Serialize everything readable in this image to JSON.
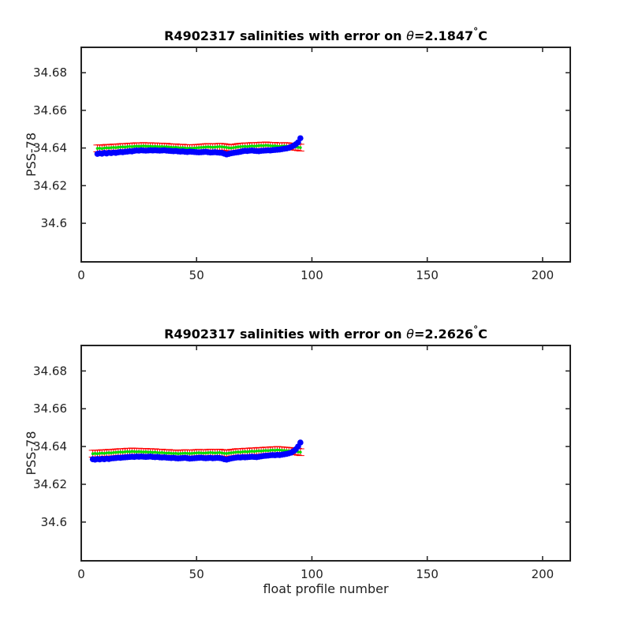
{
  "chart_data": [
    {
      "type": "line",
      "title_prefix": "R4902317 salinities with error on ",
      "title_theta": "θ",
      "title_value": "=2.1847",
      "title_deg": "°",
      "title_unit": "C",
      "xlabel": "",
      "ylabel": "PSS-78",
      "xlim": [
        0,
        212
      ],
      "ylim": [
        34.5795,
        34.6935
      ],
      "xticks": [
        0,
        50,
        100,
        150,
        200
      ],
      "yticks": [
        34.6,
        34.62,
        34.64,
        34.66,
        34.68
      ],
      "ytick_labels": [
        "34.6",
        "34.62",
        "34.64",
        "34.66",
        "34.68"
      ],
      "grid": false,
      "colors": {
        "measured": "#0000ff",
        "mapped": "#00dd00",
        "error": "#ff0000"
      },
      "series": [
        {
          "x": [
            7,
            8,
            9,
            10,
            11,
            12,
            13,
            14,
            15,
            16,
            17,
            18,
            19,
            20,
            21,
            22,
            23,
            24,
            25,
            26,
            27,
            28,
            29,
            30,
            31,
            32,
            33,
            34,
            35,
            36,
            37,
            38,
            39,
            40,
            41,
            42,
            43,
            44,
            45,
            46,
            47,
            48,
            49,
            50,
            51,
            52,
            53,
            54,
            55,
            56,
            57,
            58,
            59,
            60,
            61,
            62,
            63,
            64,
            65,
            66,
            67,
            68,
            69,
            70,
            71,
            72,
            73,
            74,
            75,
            76,
            77,
            78,
            79,
            80,
            81,
            82,
            83,
            84,
            85,
            86,
            87,
            88,
            89,
            90,
            91,
            92,
            93,
            94,
            95
          ],
          "values": [
            34.6369,
            34.6372,
            34.637,
            34.6374,
            34.6371,
            34.6375,
            34.6373,
            34.6376,
            34.6374,
            34.6377,
            34.6379,
            34.6378,
            34.638,
            34.6381,
            34.6383,
            34.6382,
            34.6385,
            34.6387,
            34.6386,
            34.6388,
            34.6387,
            34.6386,
            34.6387,
            34.6388,
            34.6387,
            34.6388,
            34.6387,
            34.6386,
            34.6387,
            34.6388,
            34.6386,
            34.6385,
            34.6384,
            34.6383,
            34.6384,
            34.6382,
            34.6381,
            34.6382,
            34.638,
            34.6379,
            34.6381,
            34.638,
            34.6379,
            34.6378,
            34.6377,
            34.6378,
            34.6379,
            34.638,
            34.6378,
            34.6376,
            34.6377,
            34.6378,
            34.6376,
            34.6375,
            34.6374,
            34.637,
            34.6366,
            34.6369,
            34.6372,
            34.6374,
            34.6376,
            34.6378,
            34.638,
            34.6383,
            34.6385,
            34.6384,
            34.6386,
            34.6387,
            34.6385,
            34.6384,
            34.6383,
            34.6385,
            34.6386,
            34.6387,
            34.6388,
            34.6387,
            34.6389,
            34.639,
            34.6391,
            34.6392,
            34.6394,
            34.6396,
            34.6398,
            34.6401,
            34.6406,
            34.6412,
            34.642,
            34.643,
            34.6452
          ],
          "mapped": [
            34.6398,
            34.6399,
            34.6397,
            34.64,
            34.6401,
            34.64,
            34.6402,
            34.6403,
            34.6402,
            34.6404,
            34.6405,
            34.6406,
            34.6405,
            34.6407,
            34.6408,
            34.6407,
            34.6409,
            34.641,
            34.6409,
            34.641,
            34.6411,
            34.641,
            34.6409,
            34.641,
            34.6408,
            34.6409,
            34.6408,
            34.6407,
            34.6408,
            34.6406,
            34.6407,
            34.6405,
            34.6404,
            34.6403,
            34.6404,
            34.6402,
            34.6401,
            34.6402,
            34.64,
            34.6399,
            34.64,
            34.6399,
            34.64,
            34.6401,
            34.6402,
            34.6403,
            34.6404,
            34.6405,
            34.6406,
            34.6405,
            34.6404,
            34.6405,
            34.6406,
            34.6407,
            34.6406,
            34.6405,
            34.6403,
            34.6401,
            34.64,
            34.6402,
            34.6404,
            34.6406,
            34.6407,
            34.6408,
            34.6409,
            34.6408,
            34.641,
            34.6411,
            34.641,
            34.6411,
            34.6412,
            34.6413,
            34.6412,
            34.6414,
            34.6413,
            34.6412,
            34.6411,
            34.6412,
            34.641,
            34.6409,
            34.641,
            34.6411,
            34.641,
            34.6409,
            34.6408,
            34.6407,
            34.6406,
            34.6404,
            34.6402
          ],
          "error": 0.0018
        }
      ]
    },
    {
      "type": "line",
      "title_prefix": "R4902317 salinities with error on ",
      "title_theta": "θ",
      "title_value": "=2.2626",
      "title_deg": "°",
      "title_unit": "C",
      "xlabel": "float profile number",
      "ylabel": "PSS-78",
      "xlim": [
        0,
        212
      ],
      "ylim": [
        34.5795,
        34.6935
      ],
      "xticks": [
        0,
        50,
        100,
        150,
        200
      ],
      "yticks": [
        34.6,
        34.62,
        34.64,
        34.66,
        34.68
      ],
      "ytick_labels": [
        "34.6",
        "34.62",
        "34.64",
        "34.66",
        "34.68"
      ],
      "grid": false,
      "colors": {
        "measured": "#0000ff",
        "mapped": "#00dd00",
        "error": "#ff0000"
      },
      "series": [
        {
          "x": [
            5,
            6,
            7,
            8,
            9,
            10,
            11,
            12,
            13,
            14,
            15,
            16,
            17,
            18,
            19,
            20,
            21,
            22,
            23,
            24,
            25,
            26,
            27,
            28,
            29,
            30,
            31,
            32,
            33,
            34,
            35,
            36,
            37,
            38,
            39,
            40,
            41,
            42,
            43,
            44,
            45,
            46,
            47,
            48,
            49,
            50,
            51,
            52,
            53,
            54,
            55,
            56,
            57,
            58,
            59,
            60,
            61,
            62,
            63,
            64,
            65,
            66,
            67,
            68,
            69,
            70,
            71,
            72,
            73,
            74,
            75,
            76,
            77,
            78,
            79,
            80,
            81,
            82,
            83,
            84,
            85,
            86,
            87,
            88,
            89,
            90,
            91,
            92,
            93,
            94,
            95
          ],
          "values": [
            34.6333,
            34.6331,
            34.6334,
            34.6332,
            34.6335,
            34.6333,
            34.6336,
            34.6334,
            34.6337,
            34.6338,
            34.6339,
            34.6341,
            34.634,
            34.6342,
            34.6343,
            34.6344,
            34.6345,
            34.6346,
            34.6345,
            34.6347,
            34.6346,
            34.6347,
            34.6346,
            34.6345,
            34.6346,
            34.6347,
            34.6345,
            34.6344,
            34.6345,
            34.6343,
            34.6342,
            34.6343,
            34.6341,
            34.634,
            34.6339,
            34.634,
            34.6338,
            34.6337,
            34.6338,
            34.6339,
            34.634,
            34.6338,
            34.6336,
            34.6337,
            34.6338,
            34.6339,
            34.634,
            34.6341,
            34.6339,
            34.6338,
            34.6339,
            34.634,
            34.6338,
            34.6339,
            34.634,
            34.6339,
            34.6337,
            34.6333,
            34.6331,
            34.6334,
            34.6337,
            34.6339,
            34.6341,
            34.6343,
            34.6342,
            34.6344,
            34.6343,
            34.6344,
            34.6345,
            34.6346,
            34.6345,
            34.6344,
            34.6346,
            34.6348,
            34.635,
            34.6351,
            34.6352,
            34.6354,
            34.6355,
            34.6354,
            34.6356,
            34.6355,
            34.6357,
            34.6359,
            34.6361,
            34.6364,
            34.6368,
            34.6375,
            34.6385,
            34.64,
            34.6421
          ],
          "mapped": [
            34.6362,
            34.6363,
            34.6362,
            34.6364,
            34.6365,
            34.6364,
            34.6366,
            34.6367,
            34.6366,
            34.6368,
            34.6369,
            34.637,
            34.6371,
            34.637,
            34.6372,
            34.6373,
            34.6372,
            34.6374,
            34.6373,
            34.6372,
            34.6373,
            34.6372,
            34.6371,
            34.6372,
            34.637,
            34.6371,
            34.6369,
            34.637,
            34.6368,
            34.6367,
            34.6368,
            34.6366,
            34.6365,
            34.6366,
            34.6364,
            34.6363,
            34.6364,
            34.6362,
            34.6363,
            34.6364,
            34.6365,
            34.6364,
            34.6363,
            34.6364,
            34.6365,
            34.6366,
            34.6367,
            34.6366,
            34.6365,
            34.6366,
            34.6367,
            34.6368,
            34.6367,
            34.6366,
            34.6367,
            34.6368,
            34.6366,
            34.6364,
            34.6363,
            34.6365,
            34.6367,
            34.6368,
            34.637,
            34.6371,
            34.637,
            34.6372,
            34.6373,
            34.6372,
            34.6374,
            34.6375,
            34.6374,
            34.6376,
            34.6377,
            34.6376,
            34.6378,
            34.6379,
            34.6378,
            34.638,
            34.6381,
            34.638,
            34.6382,
            34.6381,
            34.638,
            34.6379,
            34.6378,
            34.6377,
            34.6376,
            34.6375,
            34.6374,
            34.6372,
            34.637
          ],
          "error": 0.0018
        }
      ]
    }
  ]
}
